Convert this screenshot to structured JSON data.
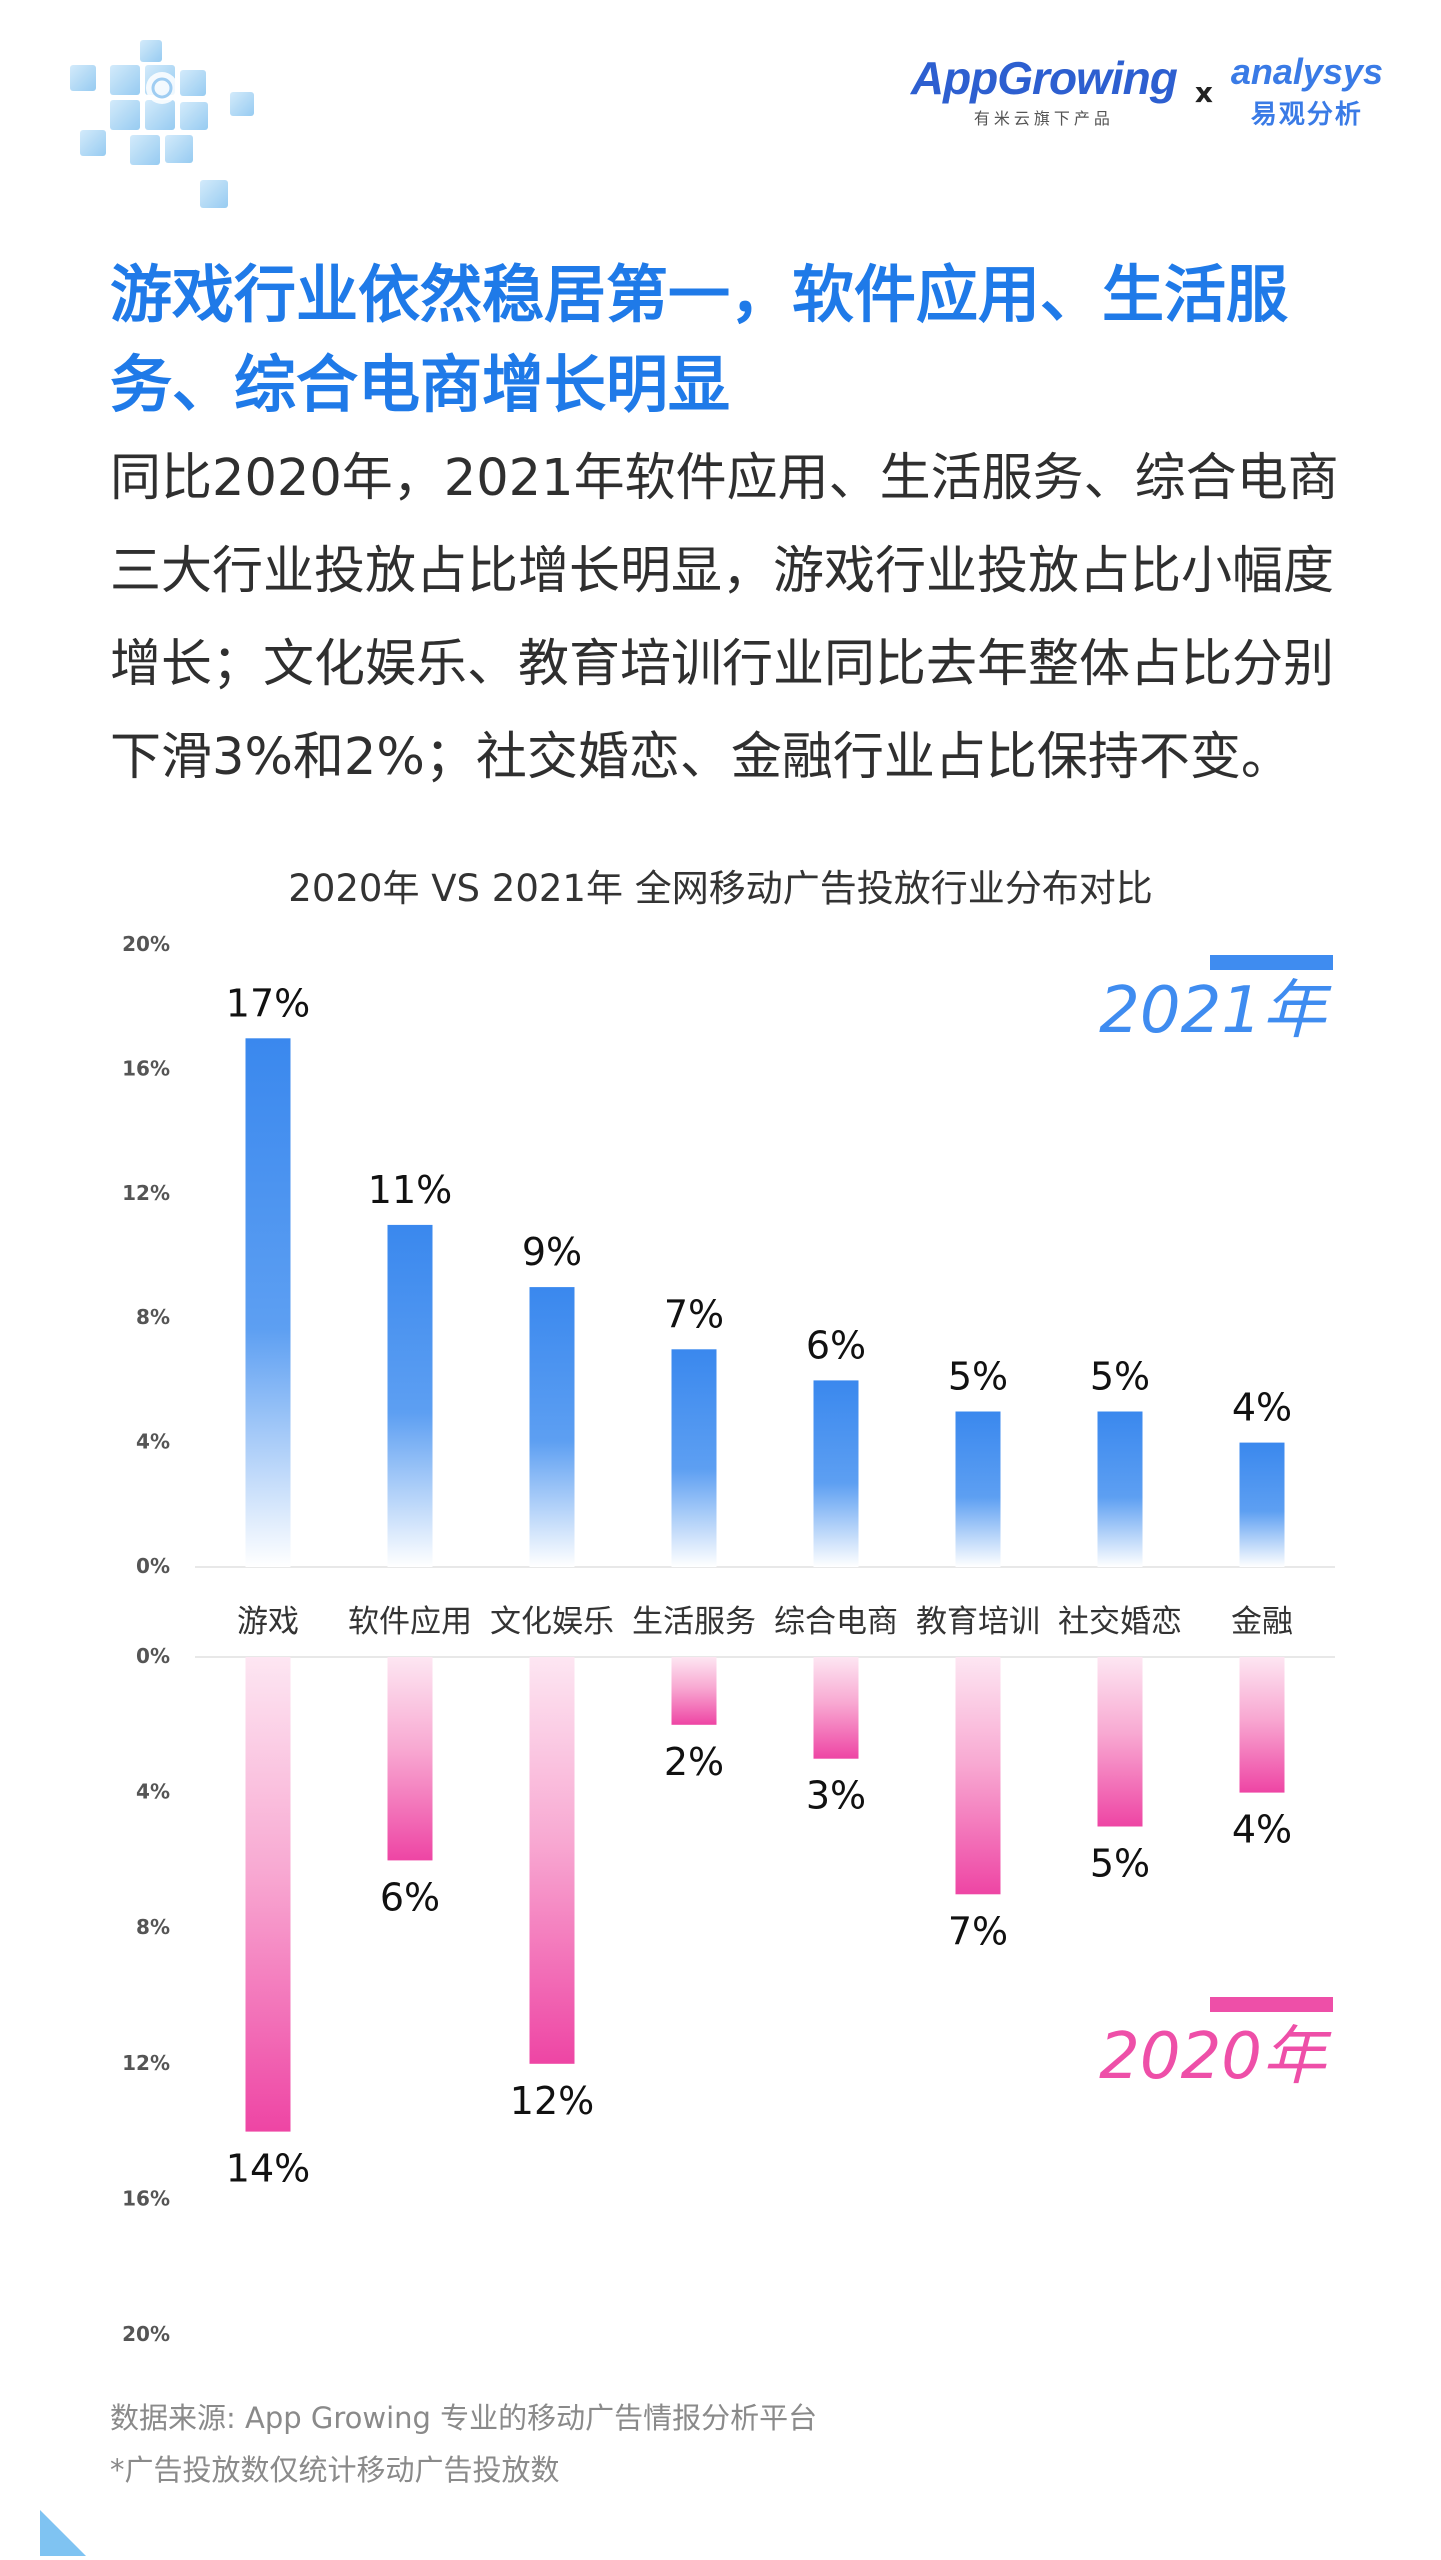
{
  "branding": {
    "appgrowing": "AppGrowing",
    "appgrowing_sub": "有米云旗下产品",
    "separator": "x",
    "analysys": "analysys",
    "analysys_cn": "易观分析"
  },
  "headline": "游戏行业依然稳居第一，软件应用、生活服务、综合电商增长明显",
  "intro": "同比2020年，2021年软件应用、生活服务、综合电商三大行业投放占比增长明显，游戏行业投放占比小幅度增长；文化娱乐、教育培训行业同比去年整体占比分别下滑3%和2%；社交婚恋、金融行业占比保持不变。",
  "chart_data": {
    "type": "bar",
    "title": "2020年 VS 2021年 全网移动广告投放行业分布对比",
    "categories": [
      "游戏",
      "软件应用",
      "文化娱乐",
      "生活服务",
      "综合电商",
      "教育培训",
      "社交婚恋",
      "金融"
    ],
    "series": [
      {
        "name": "2021年",
        "values": [
          17,
          11,
          9,
          7,
          6,
          5,
          5,
          4
        ],
        "labels": [
          "17%",
          "11%",
          "9%",
          "7%",
          "6%",
          "5%",
          "5%",
          "4%"
        ],
        "color": "#3f8cf0",
        "axis_ticks": [
          "0%",
          "4%",
          "8%",
          "12%",
          "16%",
          "20%"
        ]
      },
      {
        "name": "2020年",
        "values": [
          14,
          6,
          12,
          2,
          3,
          7,
          5,
          4
        ],
        "labels": [
          "14%",
          "6%",
          "12%",
          "2%",
          "3%",
          "7%",
          "5%",
          "4%"
        ],
        "color": "#ee4fa8",
        "axis_ticks": [
          "0%",
          "4%",
          "8%",
          "12%",
          "16%",
          "20%"
        ]
      }
    ],
    "ylim": [
      0,
      20
    ],
    "unit": "%"
  },
  "source": {
    "line1": "数据来源: App Growing 专业的移动广告情报分析平台",
    "line2": "*广告投放数仅统计移动广告投放数"
  },
  "colors": {
    "accent": "#1f7ae8",
    "blue_bar": "#3f8cf0",
    "pink_bar": "#ee4fa8",
    "cube": "#a9d5f5"
  }
}
